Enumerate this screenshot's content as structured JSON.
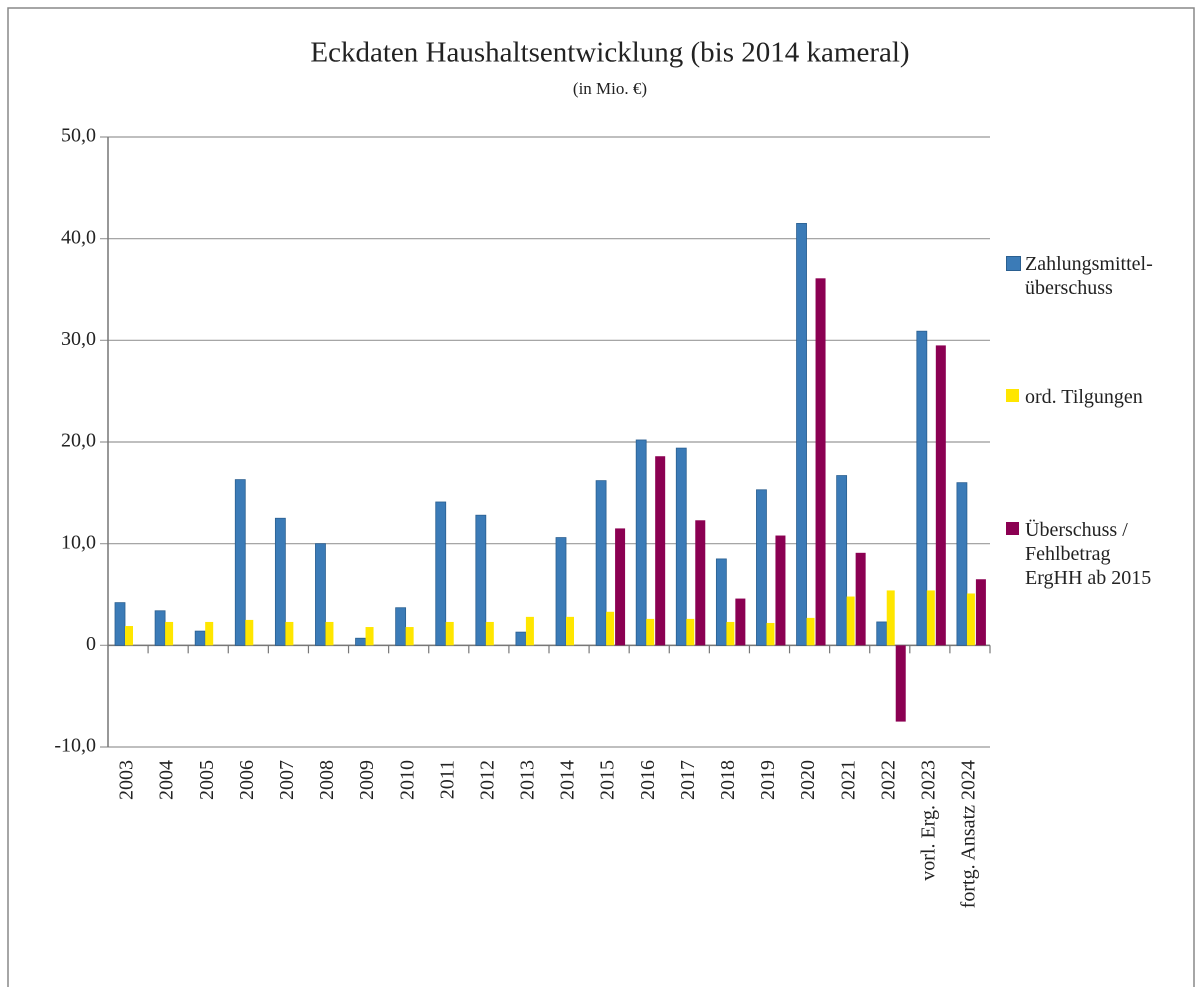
{
  "chart_data": {
    "type": "bar",
    "title": "Eckdaten Haushaltsentwicklung (bis 2014 kameral)",
    "subtitle": "(in Mio. €)",
    "categories": [
      "2003",
      "2004",
      "2005",
      "2006",
      "2007",
      "2008",
      "2009",
      "2010",
      "2011",
      "2012",
      "2013",
      "2014",
      "2015",
      "2016",
      "2017",
      "2018",
      "2019",
      "2020",
      "2021",
      "2022",
      "vorl. Erg. 2023",
      "fortg. Ansatz 2024"
    ],
    "series": [
      {
        "name": "Zahlungsmittel-\nüberschuss",
        "color": "#3b7bb7",
        "values": [
          4.2,
          3.4,
          1.4,
          16.3,
          12.5,
          10.0,
          0.7,
          3.7,
          14.1,
          12.8,
          1.3,
          10.6,
          16.2,
          20.2,
          19.4,
          8.5,
          15.3,
          41.5,
          16.7,
          2.3,
          30.9,
          16.0
        ]
      },
      {
        "name": "ord. Tilgungen",
        "color": "#ffe600",
        "values": [
          1.9,
          2.3,
          2.3,
          2.5,
          2.3,
          2.3,
          1.8,
          1.8,
          2.3,
          2.3,
          2.8,
          2.8,
          3.3,
          2.6,
          2.6,
          2.3,
          2.2,
          2.7,
          4.8,
          5.4,
          5.4,
          5.1
        ]
      },
      {
        "name": "Überschuss /\nFehlbetrag\nErgHH ab 2015",
        "color": "#8b0052",
        "values": [
          null,
          null,
          null,
          null,
          null,
          null,
          null,
          null,
          null,
          null,
          null,
          null,
          11.5,
          18.6,
          12.3,
          4.6,
          10.8,
          36.1,
          9.1,
          -7.5,
          29.5,
          6.5
        ]
      }
    ],
    "ylim": [
      -10,
      50
    ],
    "yticks": [
      {
        "value": -10,
        "label": "-10,0"
      },
      0,
      {
        "value": 10,
        "label": "10,0"
      },
      {
        "value": 20,
        "label": "20,0"
      },
      {
        "value": 30,
        "label": "30,0"
      },
      {
        "value": 40,
        "label": "40,0"
      },
      {
        "value": 50,
        "label": "50,0"
      }
    ],
    "grid": true,
    "legend": "right"
  }
}
